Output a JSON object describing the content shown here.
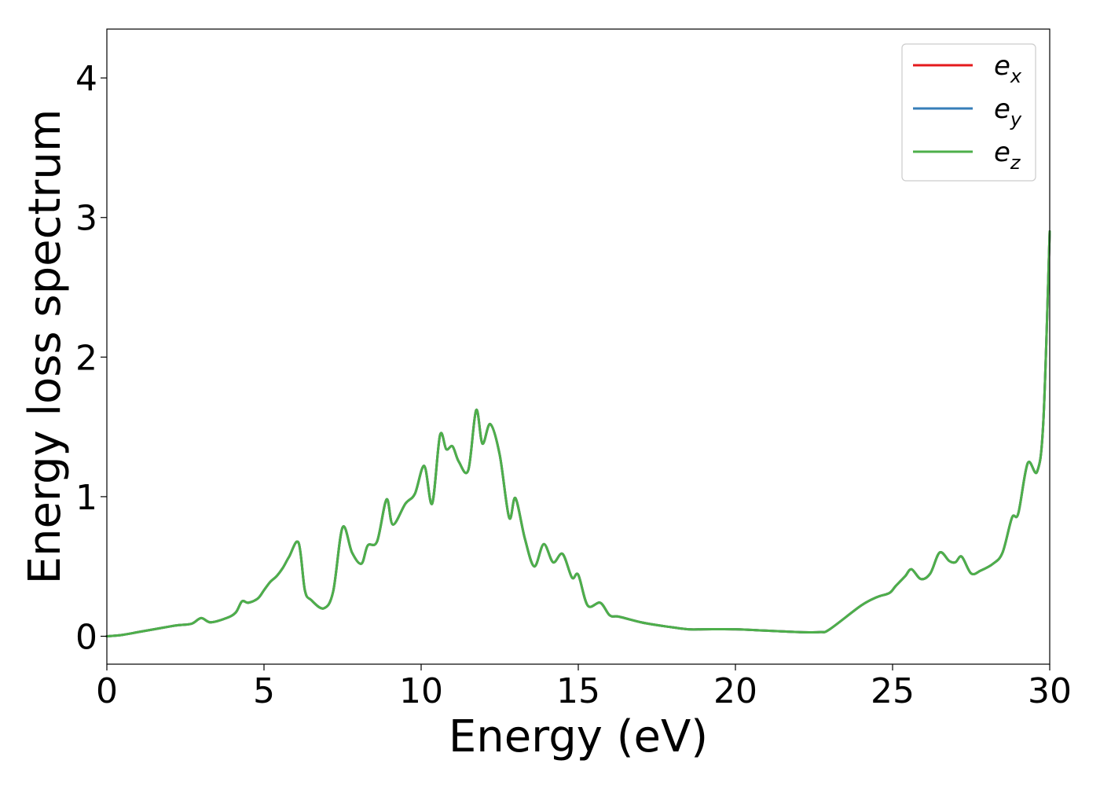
{
  "chart_data": {
    "type": "line",
    "title": "",
    "xlabel": "Energy (eV)",
    "ylabel": "Energy loss spectrum",
    "xlim": [
      0,
      30
    ],
    "ylim": [
      -0.2,
      4.35
    ],
    "xticks": [
      0,
      5,
      10,
      15,
      20,
      25,
      30
    ],
    "yticks": [
      0,
      1,
      2,
      3,
      4
    ],
    "grid": false,
    "legend_position": "top-right",
    "series": [
      {
        "name": "e",
        "name_sub": "x",
        "color": "#e41a1c",
        "x": [
          0,
          0.5,
          1,
          1.5,
          2,
          2.3,
          2.7,
          3,
          3.3,
          3.8,
          4.1,
          4.3,
          4.5,
          4.8,
          5,
          5.2,
          5.4,
          5.6,
          5.8,
          6.1,
          6.3,
          6.5,
          6.9,
          7.2,
          7.5,
          7.8,
          8.1,
          8.3,
          8.6,
          8.9,
          9.1,
          9.5,
          9.8,
          10.1,
          10.35,
          10.6,
          10.8,
          11,
          11.2,
          11.5,
          11.75,
          11.95,
          12.2,
          12.5,
          12.8,
          13,
          13.3,
          13.6,
          13.9,
          14.2,
          14.5,
          14.8,
          15,
          15.3,
          15.7,
          16,
          16.3,
          17,
          17.5,
          17.8,
          18.5,
          19,
          20,
          21,
          22,
          22.7,
          23,
          24,
          24.5,
          24.9,
          25.1,
          25.4,
          25.6,
          25.9,
          26.2,
          26.5,
          26.8,
          27,
          27.2,
          27.5,
          27.8,
          28.2,
          28.5,
          28.8,
          29,
          29.3,
          29.6,
          29.8,
          30
        ],
        "values": [
          0,
          0.01,
          0.03,
          0.05,
          0.07,
          0.08,
          0.09,
          0.13,
          0.1,
          0.13,
          0.17,
          0.25,
          0.24,
          0.27,
          0.33,
          0.39,
          0.43,
          0.49,
          0.57,
          0.67,
          0.33,
          0.26,
          0.2,
          0.32,
          0.78,
          0.6,
          0.52,
          0.65,
          0.68,
          0.98,
          0.8,
          0.95,
          1.02,
          1.22,
          0.95,
          1.44,
          1.34,
          1.36,
          1.25,
          1.19,
          1.62,
          1.38,
          1.52,
          1.3,
          0.85,
          0.99,
          0.7,
          0.5,
          0.66,
          0.53,
          0.59,
          0.42,
          0.44,
          0.22,
          0.24,
          0.15,
          0.14,
          0.1,
          0.08,
          0.07,
          0.05,
          0.05,
          0.05,
          0.04,
          0.03,
          0.03,
          0.05,
          0.22,
          0.28,
          0.31,
          0.36,
          0.43,
          0.48,
          0.41,
          0.45,
          0.6,
          0.54,
          0.53,
          0.57,
          0.45,
          0.47,
          0.52,
          0.6,
          0.85,
          0.88,
          1.24,
          1.18,
          1.55,
          2.9
        ]
      },
      {
        "name": "e",
        "name_sub": "y",
        "color": "#377eb8",
        "x": [
          0,
          0.5,
          1,
          1.5,
          2,
          2.3,
          2.7,
          3,
          3.3,
          3.8,
          4.1,
          4.3,
          4.5,
          4.8,
          5,
          5.2,
          5.4,
          5.6,
          5.8,
          6.1,
          6.3,
          6.5,
          6.9,
          7.2,
          7.5,
          7.8,
          8.1,
          8.3,
          8.6,
          8.9,
          9.1,
          9.5,
          9.8,
          10.1,
          10.35,
          10.6,
          10.8,
          11,
          11.2,
          11.5,
          11.75,
          11.95,
          12.2,
          12.5,
          12.8,
          13,
          13.3,
          13.6,
          13.9,
          14.2,
          14.5,
          14.8,
          15,
          15.3,
          15.7,
          16,
          16.3,
          17,
          17.5,
          17.8,
          18.5,
          19,
          20,
          21,
          22,
          22.7,
          23,
          24,
          24.5,
          24.9,
          25.1,
          25.4,
          25.6,
          25.9,
          26.2,
          26.5,
          26.8,
          27,
          27.2,
          27.5,
          27.8,
          28.2,
          28.5,
          28.8,
          29,
          29.3,
          29.6,
          29.8,
          30
        ],
        "values": [
          0,
          0.01,
          0.03,
          0.05,
          0.07,
          0.08,
          0.09,
          0.13,
          0.1,
          0.13,
          0.17,
          0.25,
          0.24,
          0.27,
          0.33,
          0.39,
          0.43,
          0.49,
          0.57,
          0.67,
          0.33,
          0.26,
          0.2,
          0.32,
          0.78,
          0.6,
          0.52,
          0.65,
          0.68,
          0.98,
          0.8,
          0.95,
          1.02,
          1.22,
          0.95,
          1.44,
          1.34,
          1.36,
          1.25,
          1.19,
          1.62,
          1.38,
          1.52,
          1.3,
          0.85,
          0.99,
          0.7,
          0.5,
          0.66,
          0.53,
          0.59,
          0.42,
          0.44,
          0.22,
          0.24,
          0.15,
          0.14,
          0.1,
          0.08,
          0.07,
          0.05,
          0.05,
          0.05,
          0.04,
          0.03,
          0.03,
          0.05,
          0.22,
          0.28,
          0.31,
          0.36,
          0.43,
          0.48,
          0.41,
          0.45,
          0.6,
          0.54,
          0.53,
          0.57,
          0.45,
          0.47,
          0.52,
          0.6,
          0.85,
          0.88,
          1.24,
          1.18,
          1.55,
          2.9
        ]
      },
      {
        "name": "e",
        "name_sub": "z",
        "color": "#4daf4a",
        "x": [
          0,
          0.5,
          1,
          1.5,
          2,
          2.3,
          2.7,
          3,
          3.3,
          3.8,
          4.1,
          4.3,
          4.5,
          4.8,
          5,
          5.2,
          5.4,
          5.6,
          5.8,
          6.1,
          6.3,
          6.5,
          6.9,
          7.2,
          7.5,
          7.8,
          8.1,
          8.3,
          8.6,
          8.9,
          9.1,
          9.5,
          9.8,
          10.1,
          10.35,
          10.6,
          10.8,
          11,
          11.2,
          11.5,
          11.75,
          11.95,
          12.2,
          12.5,
          12.8,
          13,
          13.3,
          13.6,
          13.9,
          14.2,
          14.5,
          14.8,
          15,
          15.3,
          15.7,
          16,
          16.3,
          17,
          17.5,
          17.8,
          18.5,
          19,
          20,
          21,
          22,
          22.7,
          23,
          24,
          24.5,
          24.9,
          25.1,
          25.4,
          25.6,
          25.9,
          26.2,
          26.5,
          26.8,
          27,
          27.2,
          27.5,
          27.8,
          28.2,
          28.5,
          28.8,
          29,
          29.3,
          29.6,
          29.8,
          30
        ],
        "values": [
          0,
          0.01,
          0.03,
          0.05,
          0.07,
          0.08,
          0.09,
          0.13,
          0.1,
          0.13,
          0.17,
          0.25,
          0.24,
          0.27,
          0.33,
          0.39,
          0.43,
          0.49,
          0.57,
          0.67,
          0.33,
          0.26,
          0.2,
          0.32,
          0.78,
          0.6,
          0.52,
          0.65,
          0.68,
          0.98,
          0.8,
          0.95,
          1.02,
          1.22,
          0.95,
          1.44,
          1.34,
          1.36,
          1.25,
          1.19,
          1.62,
          1.38,
          1.52,
          1.3,
          0.85,
          0.99,
          0.7,
          0.5,
          0.66,
          0.53,
          0.59,
          0.42,
          0.44,
          0.22,
          0.24,
          0.15,
          0.14,
          0.1,
          0.08,
          0.07,
          0.05,
          0.05,
          0.05,
          0.04,
          0.03,
          0.03,
          0.05,
          0.22,
          0.28,
          0.31,
          0.36,
          0.43,
          0.48,
          0.41,
          0.45,
          0.6,
          0.54,
          0.53,
          0.57,
          0.45,
          0.47,
          0.52,
          0.6,
          0.85,
          0.88,
          1.24,
          1.18,
          1.55,
          2.9
        ]
      }
    ]
  }
}
